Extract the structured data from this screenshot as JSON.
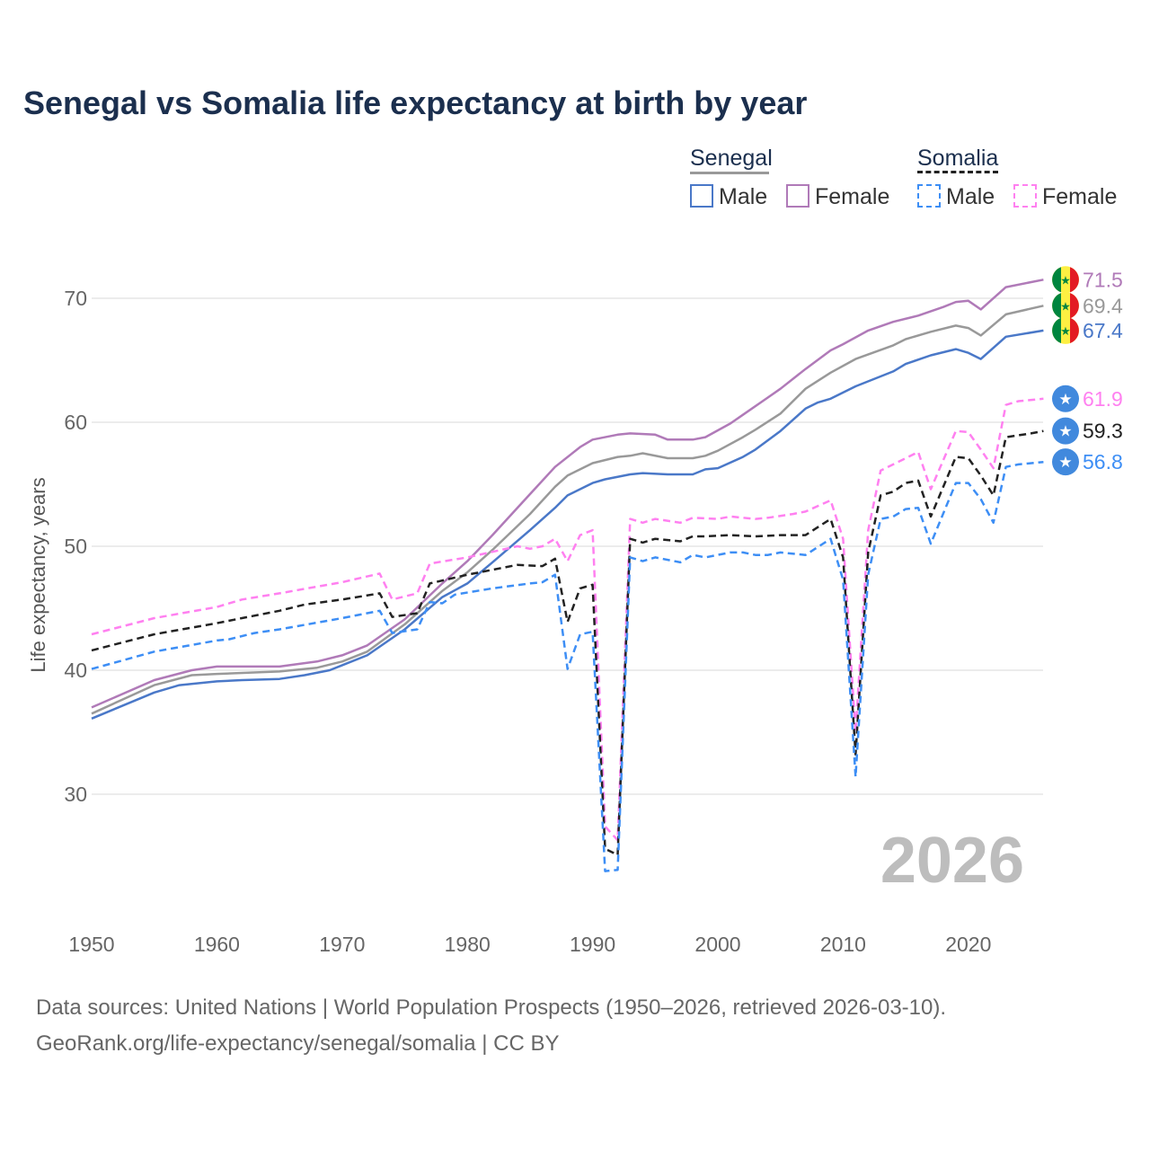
{
  "chart_data": {
    "type": "line",
    "title": "Senegal vs Somalia life expectancy at birth by year",
    "ylabel": "Life expectancy, years",
    "xlim": [
      1950,
      2026
    ],
    "ylim": [
      22,
      75
    ],
    "x_ticks": [
      "1950",
      "1960",
      "1970",
      "1980",
      "1990",
      "2000",
      "2010",
      "2020"
    ],
    "y_ticks": [
      "30",
      "40",
      "50",
      "60",
      "70"
    ],
    "watermark_year": "2026",
    "legend": {
      "placement": "top-right",
      "groups": [
        {
          "name": "Senegal",
          "items": [
            "Male",
            "Female"
          ]
        },
        {
          "name": "Somalia",
          "items": [
            "Male",
            "Female"
          ]
        }
      ]
    },
    "series": [
      {
        "name": "Senegal Female",
        "color": "#b07ab8",
        "dash": false,
        "end_label": "71.5",
        "flag": "senegal",
        "points": [
          [
            1950,
            37.0
          ],
          [
            1955,
            39.2
          ],
          [
            1958,
            40.0
          ],
          [
            1960,
            40.3
          ],
          [
            1965,
            40.3
          ],
          [
            1968,
            40.7
          ],
          [
            1970,
            41.2
          ],
          [
            1972,
            42.0
          ],
          [
            1975,
            44.1
          ],
          [
            1978,
            47.0
          ],
          [
            1980,
            48.8
          ],
          [
            1982,
            50.9
          ],
          [
            1985,
            54.2
          ],
          [
            1987,
            56.4
          ],
          [
            1989,
            58.0
          ],
          [
            1990,
            58.6
          ],
          [
            1992,
            59.0
          ],
          [
            1993,
            59.1
          ],
          [
            1995,
            59.0
          ],
          [
            1996,
            58.6
          ],
          [
            1998,
            58.6
          ],
          [
            1999,
            58.8
          ],
          [
            2001,
            59.9
          ],
          [
            2002,
            60.6
          ],
          [
            2004,
            62.0
          ],
          [
            2005,
            62.7
          ],
          [
            2007,
            64.3
          ],
          [
            2009,
            65.8
          ],
          [
            2010,
            66.3
          ],
          [
            2012,
            67.4
          ],
          [
            2014,
            68.1
          ],
          [
            2016,
            68.6
          ],
          [
            2018,
            69.3
          ],
          [
            2019,
            69.7
          ],
          [
            2020,
            69.8
          ],
          [
            2021,
            69.1
          ],
          [
            2023,
            70.9
          ],
          [
            2026,
            71.5
          ]
        ]
      },
      {
        "name": "Senegal",
        "color": "#999999",
        "dash": false,
        "end_label": "69.4",
        "flag": "senegal",
        "points": [
          [
            1950,
            36.5
          ],
          [
            1955,
            38.8
          ],
          [
            1958,
            39.6
          ],
          [
            1960,
            39.7
          ],
          [
            1965,
            39.9
          ],
          [
            1968,
            40.2
          ],
          [
            1970,
            40.7
          ],
          [
            1972,
            41.5
          ],
          [
            1975,
            43.7
          ],
          [
            1978,
            46.4
          ],
          [
            1980,
            47.9
          ],
          [
            1982,
            49.7
          ],
          [
            1985,
            52.6
          ],
          [
            1987,
            54.8
          ],
          [
            1988,
            55.7
          ],
          [
            1990,
            56.7
          ],
          [
            1992,
            57.2
          ],
          [
            1993,
            57.3
          ],
          [
            1994,
            57.5
          ],
          [
            1996,
            57.1
          ],
          [
            1998,
            57.1
          ],
          [
            1999,
            57.3
          ],
          [
            2000,
            57.7
          ],
          [
            2002,
            58.8
          ],
          [
            2003,
            59.4
          ],
          [
            2005,
            60.7
          ],
          [
            2007,
            62.7
          ],
          [
            2009,
            64.0
          ],
          [
            2011,
            65.1
          ],
          [
            2014,
            66.2
          ],
          [
            2015,
            66.7
          ],
          [
            2017,
            67.3
          ],
          [
            2019,
            67.8
          ],
          [
            2020,
            67.6
          ],
          [
            2021,
            67.0
          ],
          [
            2023,
            68.7
          ],
          [
            2026,
            69.4
          ]
        ]
      },
      {
        "name": "Senegal Male",
        "color": "#4a78c8",
        "dash": false,
        "end_label": "67.4",
        "flag": "senegal",
        "points": [
          [
            1950,
            36.1
          ],
          [
            1955,
            38.2
          ],
          [
            1957,
            38.8
          ],
          [
            1960,
            39.1
          ],
          [
            1962,
            39.2
          ],
          [
            1965,
            39.3
          ],
          [
            1967,
            39.6
          ],
          [
            1969,
            40.0
          ],
          [
            1972,
            41.2
          ],
          [
            1975,
            43.3
          ],
          [
            1978,
            45.9
          ],
          [
            1980,
            47.0
          ],
          [
            1982,
            48.7
          ],
          [
            1985,
            51.3
          ],
          [
            1987,
            53.1
          ],
          [
            1988,
            54.1
          ],
          [
            1990,
            55.1
          ],
          [
            1991,
            55.4
          ],
          [
            1993,
            55.8
          ],
          [
            1994,
            55.9
          ],
          [
            1996,
            55.8
          ],
          [
            1998,
            55.8
          ],
          [
            1999,
            56.2
          ],
          [
            2000,
            56.3
          ],
          [
            2002,
            57.2
          ],
          [
            2003,
            57.8
          ],
          [
            2005,
            59.3
          ],
          [
            2007,
            61.1
          ],
          [
            2008,
            61.6
          ],
          [
            2009,
            61.9
          ],
          [
            2011,
            62.9
          ],
          [
            2014,
            64.1
          ],
          [
            2015,
            64.7
          ],
          [
            2017,
            65.4
          ],
          [
            2019,
            65.9
          ],
          [
            2020,
            65.6
          ],
          [
            2021,
            65.1
          ],
          [
            2023,
            66.9
          ],
          [
            2026,
            67.4
          ]
        ]
      },
      {
        "name": "Somalia Female",
        "color": "#ff80f0",
        "dash": true,
        "end_label": "61.9",
        "flag": "somalia",
        "points": [
          [
            1950,
            42.9
          ],
          [
            1955,
            44.2
          ],
          [
            1960,
            45.1
          ],
          [
            1962,
            45.7
          ],
          [
            1965,
            46.2
          ],
          [
            1970,
            47.1
          ],
          [
            1973,
            47.8
          ],
          [
            1974,
            45.7
          ],
          [
            1976,
            46.2
          ],
          [
            1977,
            48.6
          ],
          [
            1980,
            49.1
          ],
          [
            1984,
            50.0
          ],
          [
            1985,
            49.8
          ],
          [
            1986,
            50.0
          ],
          [
            1987,
            50.6
          ],
          [
            1988,
            48.8
          ],
          [
            1989,
            50.9
          ],
          [
            1990,
            51.3
          ],
          [
            1991,
            27.4
          ],
          [
            1992,
            26.3
          ],
          [
            1993,
            52.2
          ],
          [
            1994,
            51.9
          ],
          [
            1995,
            52.2
          ],
          [
            1997,
            51.9
          ],
          [
            1998,
            52.3
          ],
          [
            2000,
            52.2
          ],
          [
            2001,
            52.4
          ],
          [
            2003,
            52.2
          ],
          [
            2004,
            52.3
          ],
          [
            2006,
            52.6
          ],
          [
            2007,
            52.8
          ],
          [
            2009,
            53.7
          ],
          [
            2010,
            50.6
          ],
          [
            2011,
            35.0
          ],
          [
            2012,
            51.3
          ],
          [
            2013,
            56.1
          ],
          [
            2015,
            57.1
          ],
          [
            2016,
            57.6
          ],
          [
            2017,
            54.6
          ],
          [
            2019,
            59.3
          ],
          [
            2020,
            59.2
          ],
          [
            2021,
            57.8
          ],
          [
            2022,
            56.3
          ],
          [
            2023,
            61.4
          ],
          [
            2024,
            61.7
          ],
          [
            2026,
            61.9
          ]
        ]
      },
      {
        "name": "Somalia",
        "color": "#222222",
        "dash": true,
        "end_label": "59.3",
        "flag": "somalia",
        "points": [
          [
            1950,
            41.6
          ],
          [
            1955,
            42.9
          ],
          [
            1960,
            43.8
          ],
          [
            1962,
            44.2
          ],
          [
            1965,
            44.8
          ],
          [
            1967,
            45.3
          ],
          [
            1970,
            45.7
          ],
          [
            1973,
            46.2
          ],
          [
            1974,
            44.3
          ],
          [
            1976,
            44.6
          ],
          [
            1977,
            47.0
          ],
          [
            1980,
            47.7
          ],
          [
            1984,
            48.5
          ],
          [
            1986,
            48.4
          ],
          [
            1987,
            49.0
          ],
          [
            1988,
            43.9
          ],
          [
            1989,
            46.6
          ],
          [
            1990,
            46.9
          ],
          [
            1991,
            25.6
          ],
          [
            1992,
            25.1
          ],
          [
            1993,
            50.6
          ],
          [
            1994,
            50.3
          ],
          [
            1995,
            50.6
          ],
          [
            1997,
            50.4
          ],
          [
            1998,
            50.8
          ],
          [
            1999,
            50.8
          ],
          [
            2001,
            50.9
          ],
          [
            2003,
            50.8
          ],
          [
            2005,
            50.9
          ],
          [
            2007,
            50.9
          ],
          [
            2009,
            52.2
          ],
          [
            2010,
            49.1
          ],
          [
            2011,
            33.2
          ],
          [
            2012,
            49.5
          ],
          [
            2013,
            54.1
          ],
          [
            2014,
            54.4
          ],
          [
            2015,
            55.1
          ],
          [
            2016,
            55.3
          ],
          [
            2017,
            52.4
          ],
          [
            2019,
            57.2
          ],
          [
            2020,
            57.1
          ],
          [
            2021,
            55.7
          ],
          [
            2022,
            54.1
          ],
          [
            2023,
            58.8
          ],
          [
            2025,
            59.1
          ],
          [
            2026,
            59.3
          ]
        ]
      },
      {
        "name": "Somalia Male",
        "color": "#3d8ef5",
        "dash": true,
        "end_label": "56.8",
        "flag": "somalia",
        "points": [
          [
            1950,
            40.1
          ],
          [
            1955,
            41.5
          ],
          [
            1960,
            42.4
          ],
          [
            1961,
            42.5
          ],
          [
            1963,
            43.0
          ],
          [
            1965,
            43.3
          ],
          [
            1970,
            44.2
          ],
          [
            1973,
            44.8
          ],
          [
            1974,
            43.0
          ],
          [
            1976,
            43.3
          ],
          [
            1977,
            45.5
          ],
          [
            1978,
            45.4
          ],
          [
            1979,
            46.1
          ],
          [
            1982,
            46.6
          ],
          [
            1985,
            47.0
          ],
          [
            1986,
            47.1
          ],
          [
            1987,
            47.7
          ],
          [
            1988,
            40.1
          ],
          [
            1989,
            42.9
          ],
          [
            1990,
            43.1
          ],
          [
            1991,
            23.8
          ],
          [
            1992,
            23.9
          ],
          [
            1993,
            49.1
          ],
          [
            1994,
            48.8
          ],
          [
            1995,
            49.1
          ],
          [
            1997,
            48.7
          ],
          [
            1998,
            49.3
          ],
          [
            1999,
            49.1
          ],
          [
            2001,
            49.5
          ],
          [
            2002,
            49.5
          ],
          [
            2003,
            49.3
          ],
          [
            2004,
            49.3
          ],
          [
            2005,
            49.5
          ],
          [
            2007,
            49.3
          ],
          [
            2009,
            50.6
          ],
          [
            2010,
            47.3
          ],
          [
            2011,
            31.4
          ],
          [
            2012,
            47.7
          ],
          [
            2013,
            52.2
          ],
          [
            2014,
            52.4
          ],
          [
            2015,
            53.0
          ],
          [
            2016,
            53.1
          ],
          [
            2017,
            50.2
          ],
          [
            2019,
            55.1
          ],
          [
            2020,
            55.1
          ],
          [
            2021,
            53.8
          ],
          [
            2022,
            51.9
          ],
          [
            2023,
            56.4
          ],
          [
            2024,
            56.6
          ],
          [
            2026,
            56.8
          ]
        ]
      }
    ]
  },
  "footer": {
    "line1": "Data sources: United Nations | World Population Prospects (1950–2026, retrieved 2026-03-10).",
    "line2": "GeoRank.org/life-expectancy/senegal/somalia | CC BY"
  }
}
